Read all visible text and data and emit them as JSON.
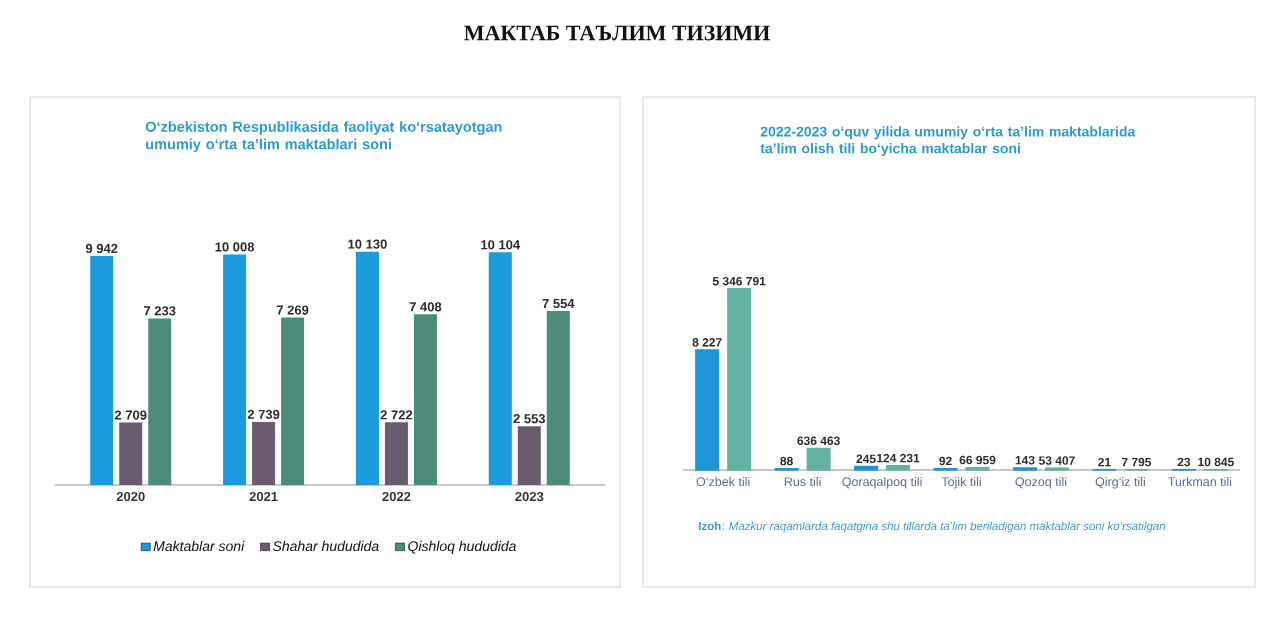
{
  "chart_data": [
    {
      "type": "bar",
      "title": "МАКТАБ ТАЪЛИМ ТИЗИМИ",
      "subtitle": "O‘zbekiston Respublikasida faoliyat ko‘rsatayotgan umumiy o‘rta ta’lim maktablari soni",
      "categories": [
        "2020",
        "2021",
        "2022",
        "2023"
      ],
      "series": [
        {
          "name": "Maktablar soni",
          "color": "#1b9bdb",
          "values": [
            9942,
            10008,
            10130,
            10104
          ],
          "value_labels": [
            "9 942",
            "10 008",
            "10 130",
            "10 104"
          ]
        },
        {
          "name": "Shahar hududida",
          "color": "#6b5b6e",
          "values": [
            2709,
            2739,
            2722,
            2553
          ],
          "value_labels": [
            "2 709",
            "2 739",
            "2 722",
            "2 553"
          ]
        },
        {
          "name": "Qishloq hududida",
          "color": "#4a8b7a",
          "values": [
            7233,
            7269,
            7408,
            7554
          ],
          "value_labels": [
            "7 233",
            "7 269",
            "7 408",
            "7 554"
          ]
        }
      ],
      "legend": "bottom"
    },
    {
      "type": "bar",
      "subtitle": "2022-2023 o‘quv yilida umumiy o‘rta ta’lim maktablarida ta’lim olish tili bo‘yicha maktablar soni",
      "categories": [
        "O‘zbek tili",
        "Rus tili",
        "Qoraqalpoq tili",
        "Tojik tili",
        "Qozoq tili",
        "Qirg‘iz tili",
        "Turkman tili"
      ],
      "series": [
        {
          "color": "#1e95d8",
          "axis": "y2",
          "values": [
            8227,
            88,
            245,
            92,
            143,
            21,
            23
          ],
          "value_labels": [
            "8 227",
            "88",
            "245",
            "92",
            "143",
            "21",
            "23"
          ]
        },
        {
          "color": "#63b3a0",
          "values": [
            5346791,
            636463,
            124231,
            66959,
            53407,
            7795,
            10845
          ],
          "value_labels": [
            "5 346 791",
            "636 463",
            "124 231",
            "66 959",
            "53 407",
            "7 795",
            "10 845"
          ]
        }
      ],
      "annotations": [
        "**Izoh**: *Mazkur raqamlarda faqatgina shu tillarda ta’lim beriladigan maktablar soni ko‘rsatilgan*"
      ]
    }
  ]
}
